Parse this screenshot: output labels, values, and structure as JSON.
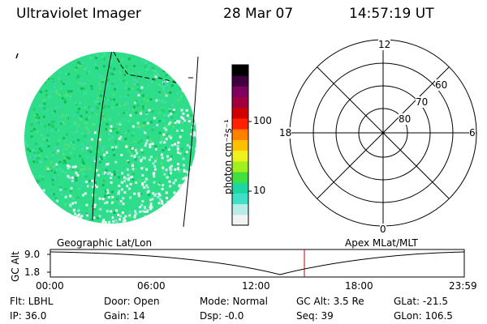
{
  "header": {
    "instrument": "Ultraviolet Imager",
    "date": "28 Mar 07",
    "time": "14:57:19 UT"
  },
  "colorbar": {
    "unit_label": "photon cm⁻²s⁻¹",
    "ticks": [
      {
        "value": 100,
        "label": "100"
      },
      {
        "value": 10,
        "label": "10"
      }
    ],
    "colors": [
      "#f3f3f3",
      "#b8ece8",
      "#40e0c8",
      "#1ed7a0",
      "#40e040",
      "#a0f020",
      "#f0f020",
      "#ffc000",
      "#ff8000",
      "#ff2000",
      "#d00000",
      "#a00040",
      "#800060",
      "#400040",
      "#000000"
    ]
  },
  "polar_plot": {
    "mlt_labels": {
      "top": "12",
      "left": "18",
      "right": "6",
      "bottom": "0"
    },
    "lat_labels": [
      "60",
      "70",
      "80"
    ]
  },
  "altitude_strip": {
    "left_label": "Geographic Lat/Lon",
    "right_label": "Apex MLat/MLT",
    "axis_label": "GC Alt",
    "y_ticks": [
      "9.0",
      "1.8"
    ],
    "x_ticks": [
      "00:00",
      "06:00",
      "12:00",
      "18:00",
      "23:59"
    ],
    "curve_color": "#000000",
    "marker_color": "#c00000"
  },
  "status": {
    "filter": "Flt: LBHL",
    "ip": "IP: 36.0",
    "door": "Door: Open",
    "gain": "Gain: 14",
    "mode": "Mode: Normal",
    "dsp": "Dsp:   -0.0",
    "gc_alt": "GC Alt: 3.5 Re",
    "seq": "Seq: 39",
    "glat": "GLat: -21.5",
    "glon": "GLon: 106.5"
  }
}
